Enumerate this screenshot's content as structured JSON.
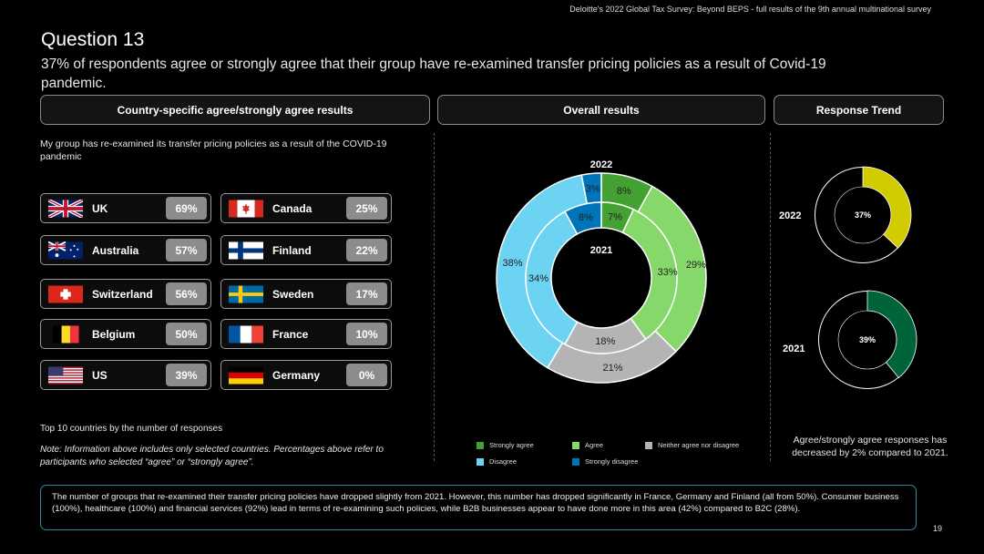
{
  "header": "Deloitte's 2022 Global Tax Survey: Beyond BEPS  - full results of the 9th annual multinational survey",
  "question": "Question 13",
  "subtitle": "37% of respondents agree or strongly agree that their group have re-examined transfer pricing policies as a result of Covid-19 pandemic.",
  "panels": {
    "country": "Country-specific agree/strongly agree results",
    "overall": "Overall results",
    "trend": "Response Trend"
  },
  "statement": "My group has re-examined its transfer pricing policies as a result of the COVID-19 pandemic",
  "countries_left": [
    {
      "name": "UK",
      "pct": "69%",
      "flag": "uk-flag"
    },
    {
      "name": "Australia",
      "pct": "57%",
      "flag": "australia-flag"
    },
    {
      "name": "Switzerland",
      "pct": "56%",
      "flag": "switzerland-flag"
    },
    {
      "name": "Belgium",
      "pct": "50%",
      "flag": "belgium-flag"
    },
    {
      "name": "US",
      "pct": "39%",
      "flag": "us-flag"
    }
  ],
  "countries_right": [
    {
      "name": "Canada",
      "pct": "25%",
      "flag": "canada-flag"
    },
    {
      "name": "Finland",
      "pct": "22%",
      "flag": "finland-flag"
    },
    {
      "name": "Sweden",
      "pct": "17%",
      "flag": "sweden-flag"
    },
    {
      "name": "France",
      "pct": "10%",
      "flag": "france-flag"
    },
    {
      "name": "Germany",
      "pct": "0%",
      "flag": "germany-flag"
    }
  ],
  "top_label": "Top 10 countries by the number of responses",
  "note": "Note: Information above includes only selected countries. Percentages above refer to participants who selected “agree” or “strongly agree”.",
  "colors": {
    "strongly_agree": "#43A132",
    "agree": "#86D86B",
    "neither": "#B4B4B4",
    "disagree": "#6DD3F3",
    "strongly_disagree": "#0074B8",
    "trend_2022": "#D1CB00",
    "trend_2021": "#00643A"
  },
  "chart_data": [
    {
      "type": "pie",
      "variant": "nested-donut",
      "categories": [
        "Strongly agree",
        "Agree",
        "Neither agree nor disagree",
        "Disagree",
        "Strongly disagree"
      ],
      "series": [
        {
          "name": "2022",
          "values": [
            8,
            29,
            21,
            38,
            3
          ]
        },
        {
          "name": "2021",
          "values": [
            7,
            33,
            18,
            34,
            8
          ]
        }
      ],
      "value_labels": {
        "2022": [
          "8%",
          "29%",
          "21%",
          "38%",
          "3%"
        ],
        "2021": [
          "7%",
          "33%",
          "18%",
          "34%",
          "8%"
        ]
      },
      "legend": [
        "Strongly agree",
        "Agree",
        "Neither agree nor disagree",
        "Disagree",
        "Strongly disagree"
      ],
      "legend_position": "bottom"
    },
    {
      "type": "pie",
      "variant": "trend-donut",
      "categories": [
        "2022",
        "2021"
      ],
      "values": [
        37,
        39
      ],
      "labels": [
        "37%",
        "39%"
      ]
    }
  ],
  "trend_note": "Agree/strongly agree responses has decreased by 2% compared to 2021.",
  "footer": "The number of groups that re-examined their transfer pricing policies have dropped slightly from 2021. However, this number has dropped significantly in France, Germany and Finland (all from 50%). Consumer business (100%), healthcare (100%) and financial services (92%) lead in terms of re-examining such policies, while B2B businesses appear to have done more in this area (42%) compared to B2C (28%).",
  "page": "19"
}
